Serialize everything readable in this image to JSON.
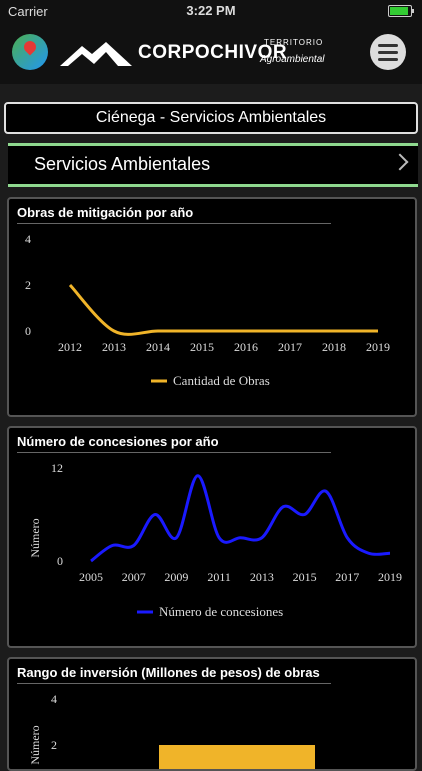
{
  "status": {
    "carrier": "Carrier",
    "time": "3:22 PM"
  },
  "brand": {
    "name": "CORPOCHIVOR",
    "line1": "TERRITORIO",
    "line2": "Agroambiental"
  },
  "breadcrumb": "Ciénega  -  Servicios Ambientales",
  "section": "Servicios Ambientales",
  "colors": {
    "obras": "#f0b429",
    "concesiones": "#1a1aff",
    "inversion": "#f0b429",
    "accent": "#8fd98f"
  },
  "chart_data": [
    {
      "type": "line",
      "title": "Obras de mitigación por año",
      "x": [
        2012,
        2013,
        2014,
        2015,
        2016,
        2017,
        2018,
        2019
      ],
      "series": [
        {
          "name": "Cantidad de Obras",
          "values": [
            2,
            0,
            0,
            0,
            0,
            0,
            0,
            0
          ]
        }
      ],
      "xticks": [
        "2012",
        "2013",
        "2014",
        "2015",
        "2016",
        "2017",
        "2018",
        "2019"
      ],
      "yticks": [
        "0",
        "2",
        "4"
      ],
      "ylim": [
        0,
        4
      ]
    },
    {
      "type": "line",
      "title": "Número de concesiones por año",
      "ylabel": "Número",
      "x": [
        2005,
        2006,
        2007,
        2008,
        2009,
        2010,
        2011,
        2012,
        2013,
        2014,
        2015,
        2016,
        2017,
        2018,
        2019
      ],
      "series": [
        {
          "name": "Número de concesiones",
          "values": [
            0,
            2,
            2,
            6,
            3,
            11,
            3,
            3,
            3,
            7,
            6,
            9,
            3,
            1,
            1
          ]
        }
      ],
      "xticks": [
        "2005",
        "2007",
        "2009",
        "2011",
        "2013",
        "2015",
        "2017",
        "2019"
      ],
      "yticks": [
        "0",
        "12"
      ],
      "ylim": [
        0,
        12
      ]
    },
    {
      "type": "bar",
      "title": "Rango de inversión (Millones de pesos) de obras",
      "ylabel": "Número",
      "values": [
        2
      ],
      "yticks": [
        "2",
        "4"
      ],
      "ylim": [
        0,
        4
      ]
    }
  ]
}
